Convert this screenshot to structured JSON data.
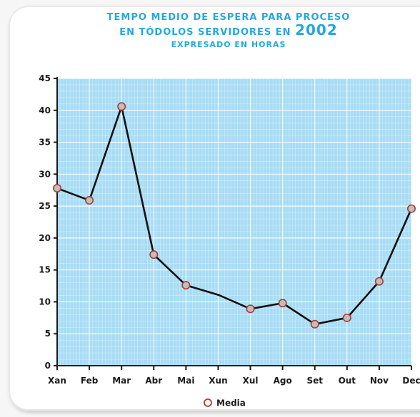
{
  "chart_data": {
    "type": "line",
    "title_line1": "Tempo medio de espera para proceso",
    "title_line2_pre": "en tódolos servidores en",
    "title_year": "2002",
    "subtitle": "expresado en horas",
    "xlabel": "",
    "ylabel": "",
    "categories": [
      "Xan",
      "Feb",
      "Mar",
      "Abr",
      "Mai",
      "Xun",
      "Xul",
      "Ago",
      "Set",
      "Out",
      "Nov",
      "Dec"
    ],
    "series": [
      {
        "name": "Media",
        "values": [
          27.8,
          25.9,
          40.6,
          17.4,
          12.6,
          11.1,
          8.9,
          9.8,
          6.5,
          7.5,
          13.2,
          24.6
        ],
        "markers": [
          true,
          true,
          true,
          true,
          true,
          false,
          true,
          true,
          true,
          true,
          true,
          true
        ]
      }
    ],
    "ylim": [
      0,
      45
    ],
    "yticks": [
      0,
      5,
      10,
      15,
      20,
      25,
      30,
      35,
      40,
      45
    ],
    "grid": true,
    "legend_position": "bottom-center",
    "colors": {
      "plot_background": "#a8dcf5",
      "grid": "#ffffff",
      "line": "#111111",
      "marker_fill": "#bfbfbf",
      "marker_stroke": "#b03a2e",
      "title": "#22a8e0"
    }
  }
}
